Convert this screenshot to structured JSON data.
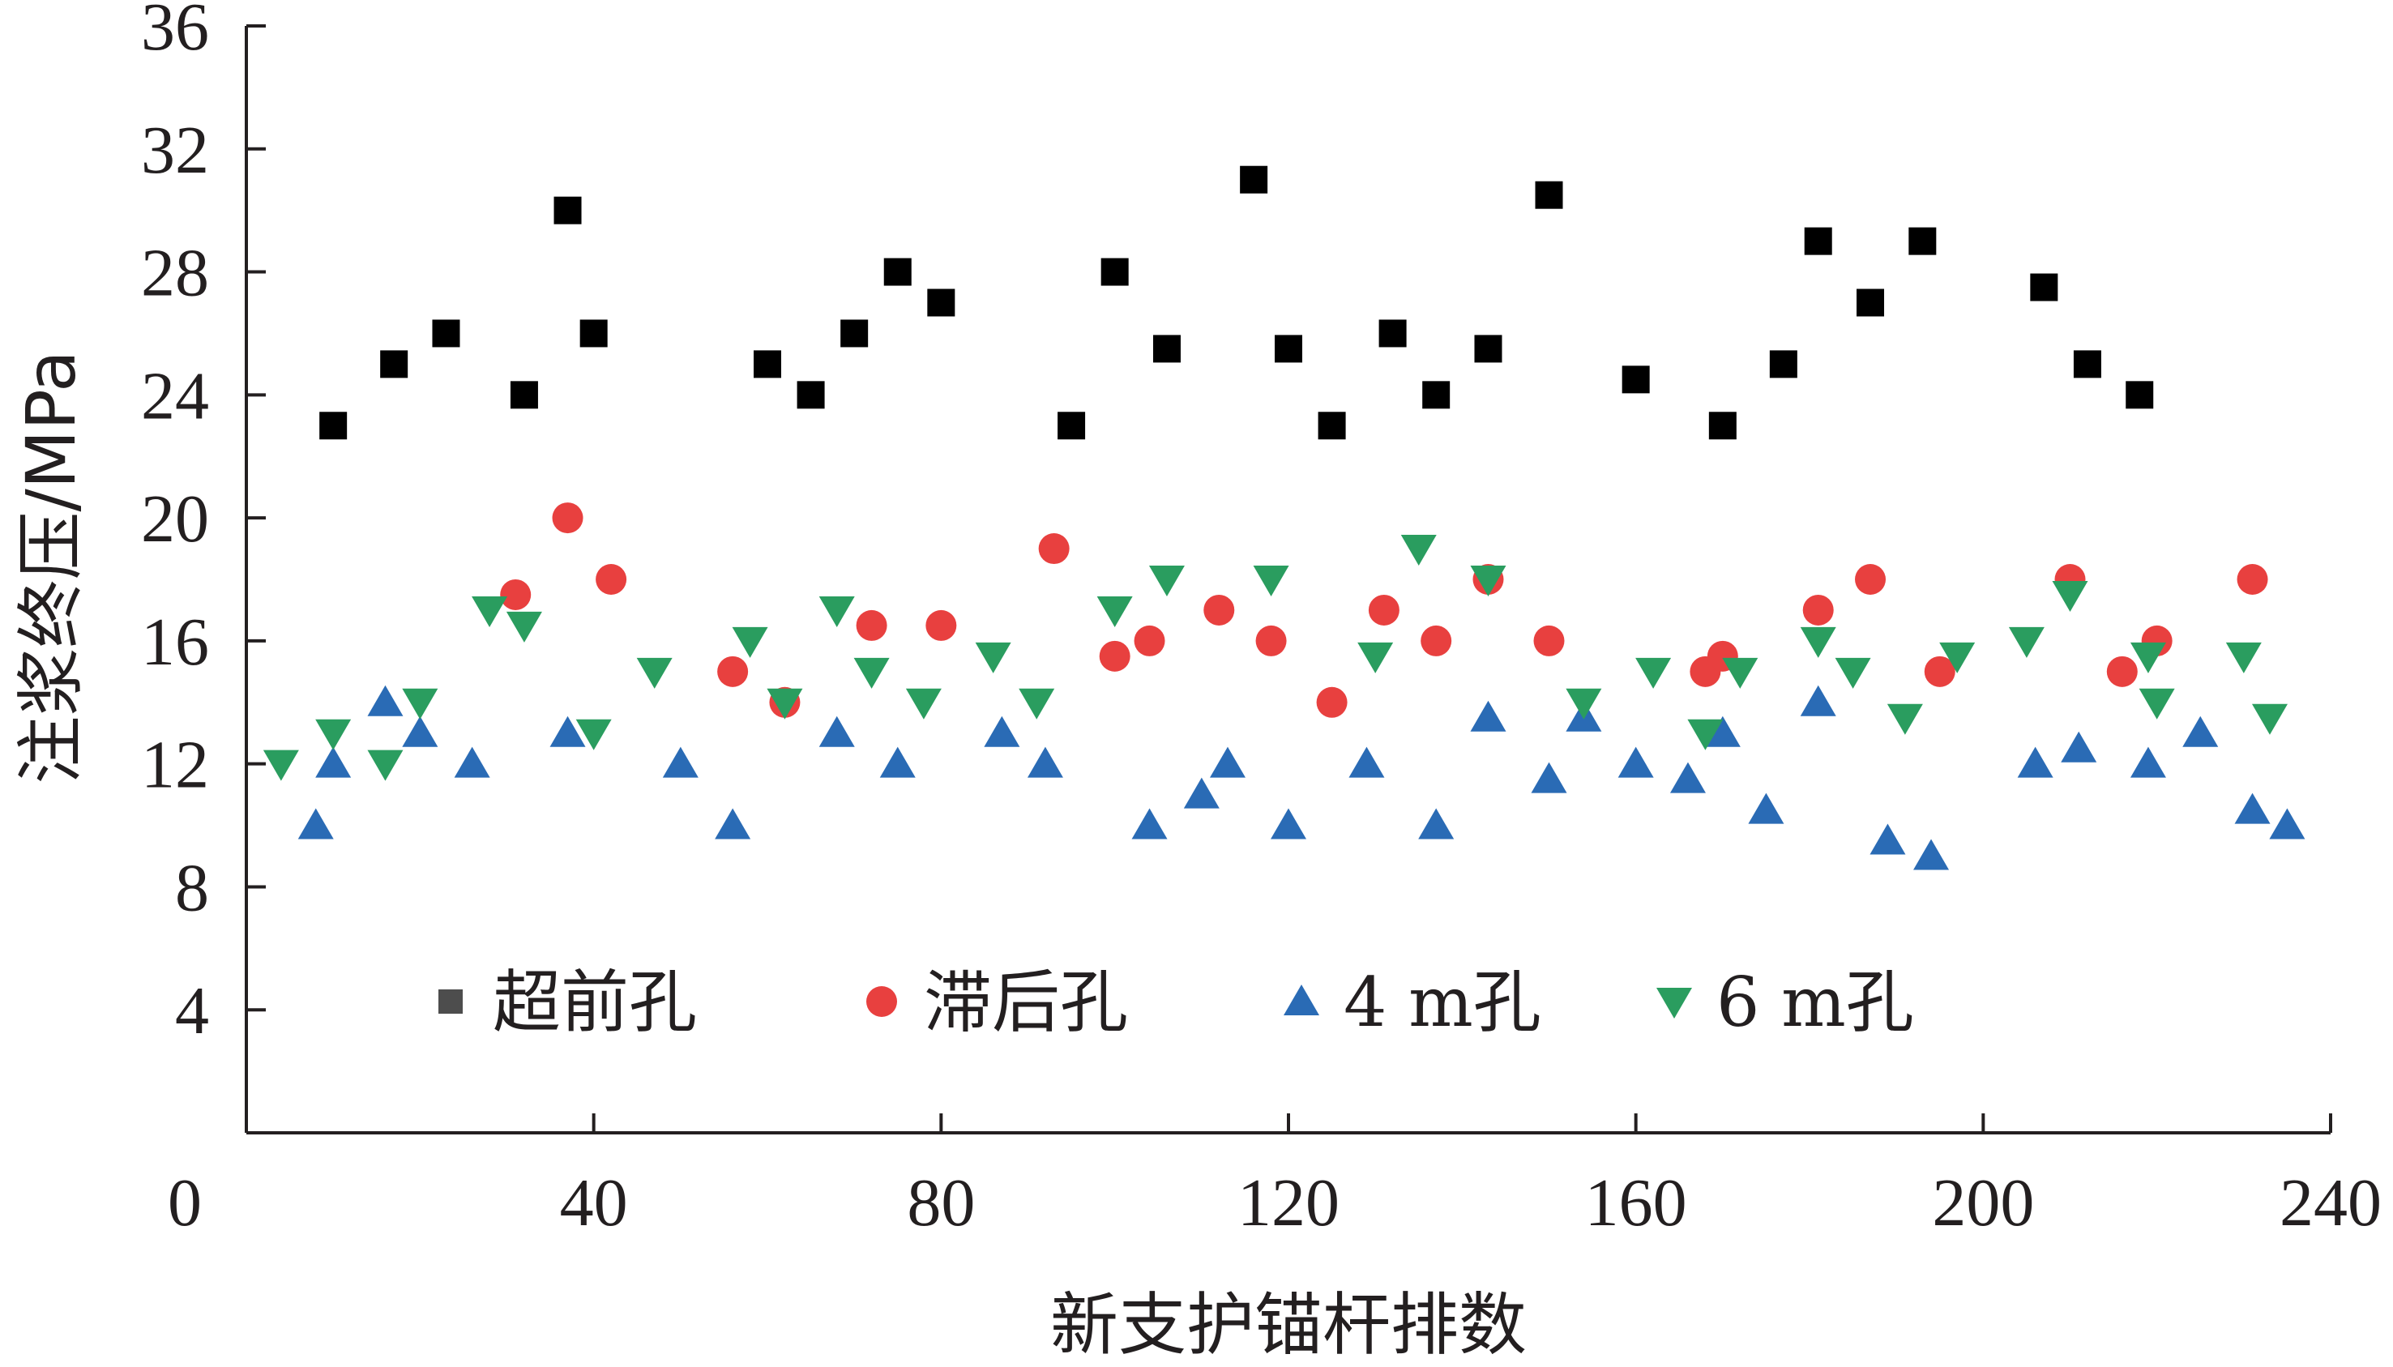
{
  "chart_data": {
    "type": "scatter",
    "title": "",
    "xlabel": "新支护锚杆排数",
    "ylabel": "注浆终压/MPa",
    "xlim": [
      0,
      240
    ],
    "ylim": [
      0,
      36
    ],
    "xticks": [
      "0",
      "40",
      "80",
      "120",
      "160",
      "200",
      "240"
    ],
    "yticks": [
      "4",
      "8",
      "12",
      "16",
      "20",
      "24",
      "28",
      "32",
      "36"
    ],
    "grid": false,
    "legend_position": "bottom-center",
    "series": [
      {
        "name": "超前孔",
        "marker": "square",
        "color": "#000000",
        "points": [
          [
            10,
            23
          ],
          [
            17,
            25
          ],
          [
            23,
            26
          ],
          [
            32,
            24
          ],
          [
            37,
            30
          ],
          [
            40,
            26
          ],
          [
            60,
            25
          ],
          [
            65,
            24
          ],
          [
            70,
            26
          ],
          [
            75,
            28
          ],
          [
            80,
            27
          ],
          [
            95,
            23
          ],
          [
            100,
            28
          ],
          [
            106,
            25.5
          ],
          [
            116,
            31
          ],
          [
            120,
            25.5
          ],
          [
            125,
            23
          ],
          [
            132,
            26
          ],
          [
            137,
            24
          ],
          [
            143,
            25.5
          ],
          [
            150,
            30.5
          ],
          [
            160,
            24.5
          ],
          [
            170,
            23
          ],
          [
            177,
            25
          ],
          [
            181,
            29
          ],
          [
            187,
            27
          ],
          [
            193,
            29
          ],
          [
            207,
            27.5
          ],
          [
            212,
            25
          ],
          [
            218,
            24
          ]
        ]
      },
      {
        "name": "滞后孔",
        "marker": "circle",
        "color": "#e8403f",
        "points": [
          [
            31,
            17.5
          ],
          [
            37,
            20
          ],
          [
            42,
            18
          ],
          [
            56,
            15
          ],
          [
            62,
            14
          ],
          [
            72,
            16.5
          ],
          [
            80,
            16.5
          ],
          [
            93,
            19
          ],
          [
            100,
            15.5
          ],
          [
            104,
            16
          ],
          [
            112,
            17
          ],
          [
            118,
            16
          ],
          [
            125,
            14
          ],
          [
            131,
            17
          ],
          [
            137,
            16
          ],
          [
            143,
            18
          ],
          [
            150,
            16
          ],
          [
            168,
            15
          ],
          [
            170,
            15.5
          ],
          [
            181,
            17
          ],
          [
            187,
            18
          ],
          [
            195,
            15
          ],
          [
            210,
            18
          ],
          [
            216,
            15
          ],
          [
            220,
            16
          ],
          [
            231,
            18
          ]
        ]
      },
      {
        "name": "4 m孔",
        "marker": "triangle-up",
        "color": "#2a6bb5",
        "points": [
          [
            8,
            10
          ],
          [
            10,
            12
          ],
          [
            16,
            14
          ],
          [
            20,
            13
          ],
          [
            26,
            12
          ],
          [
            37,
            13
          ],
          [
            50,
            12
          ],
          [
            56,
            10
          ],
          [
            68,
            13
          ],
          [
            75,
            12
          ],
          [
            87,
            13
          ],
          [
            92,
            12
          ],
          [
            104,
            10
          ],
          [
            110,
            11
          ],
          [
            113,
            12
          ],
          [
            120,
            10
          ],
          [
            129,
            12
          ],
          [
            137,
            10
          ],
          [
            143,
            13.5
          ],
          [
            150,
            11.5
          ],
          [
            154,
            13.5
          ],
          [
            160,
            12
          ],
          [
            166,
            11.5
          ],
          [
            170,
            13
          ],
          [
            175,
            10.5
          ],
          [
            181,
            14
          ],
          [
            189,
            9.5
          ],
          [
            194,
            9
          ],
          [
            206,
            12
          ],
          [
            211,
            12.5
          ],
          [
            219,
            12
          ],
          [
            225,
            13
          ],
          [
            231,
            10.5
          ],
          [
            235,
            10
          ]
        ]
      },
      {
        "name": "6 m孔",
        "marker": "triangle-down",
        "color": "#2a9d5f",
        "points": [
          [
            4,
            12
          ],
          [
            10,
            13
          ],
          [
            16,
            12
          ],
          [
            20,
            14
          ],
          [
            28,
            17
          ],
          [
            32,
            16.5
          ],
          [
            40,
            13
          ],
          [
            47,
            15
          ],
          [
            58,
            16
          ],
          [
            62,
            14
          ],
          [
            68,
            17
          ],
          [
            72,
            15
          ],
          [
            78,
            14
          ],
          [
            86,
            15.5
          ],
          [
            91,
            14
          ],
          [
            100,
            17
          ],
          [
            106,
            18
          ],
          [
            118,
            18
          ],
          [
            130,
            15.5
          ],
          [
            135,
            19
          ],
          [
            143,
            18
          ],
          [
            154,
            14
          ],
          [
            162,
            15
          ],
          [
            168,
            13
          ],
          [
            172,
            15
          ],
          [
            181,
            16
          ],
          [
            185,
            15
          ],
          [
            191,
            13.5
          ],
          [
            197,
            15.5
          ],
          [
            205,
            16
          ],
          [
            210,
            17.5
          ],
          [
            219,
            15.5
          ],
          [
            220,
            14
          ],
          [
            230,
            15.5
          ],
          [
            233,
            13.5
          ]
        ]
      }
    ]
  }
}
